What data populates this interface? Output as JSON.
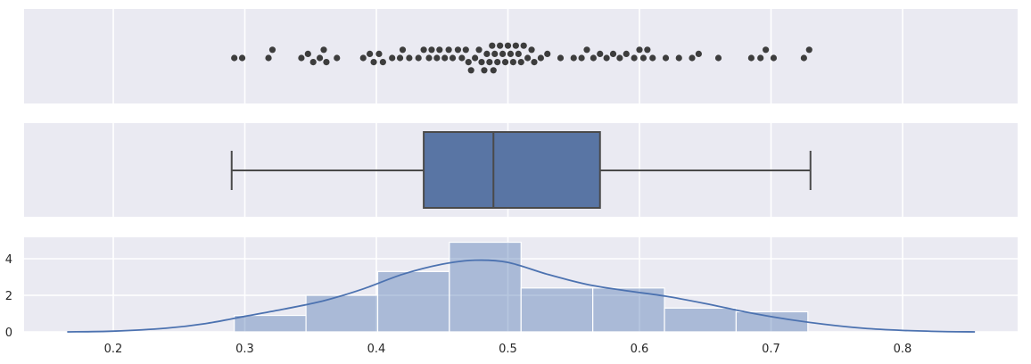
{
  "chart_data": [
    {
      "type": "scatter",
      "subtype": "swarm",
      "title": "",
      "xlabel": "",
      "ylabel": "",
      "xlim": [
        0.13,
        0.875
      ],
      "grid": true,
      "point_color": "#3d3d3d",
      "background": "#eaeaf2",
      "values": [
        0.292,
        0.298,
        0.318,
        0.321,
        0.343,
        0.348,
        0.352,
        0.357,
        0.36,
        0.362,
        0.37,
        0.39,
        0.395,
        0.398,
        0.402,
        0.405,
        0.412,
        0.418,
        0.42,
        0.425,
        0.432,
        0.436,
        0.44,
        0.442,
        0.446,
        0.448,
        0.452,
        0.455,
        0.458,
        0.462,
        0.465,
        0.468,
        0.47,
        0.472,
        0.475,
        0.478,
        0.48,
        0.482,
        0.484,
        0.486,
        0.488,
        0.489,
        0.49,
        0.492,
        0.494,
        0.496,
        0.498,
        0.5,
        0.502,
        0.504,
        0.506,
        0.508,
        0.51,
        0.512,
        0.515,
        0.518,
        0.52,
        0.525,
        0.53,
        0.54,
        0.55,
        0.556,
        0.56,
        0.565,
        0.57,
        0.575,
        0.58,
        0.585,
        0.59,
        0.596,
        0.6,
        0.603,
        0.606,
        0.61,
        0.62,
        0.63,
        0.64,
        0.645,
        0.66,
        0.685,
        0.692,
        0.696,
        0.702,
        0.725,
        0.729
      ]
    },
    {
      "type": "box",
      "title": "",
      "xlabel": "",
      "ylabel": "",
      "xlim": [
        0.13,
        0.875
      ],
      "grid": true,
      "color": "#5975a4",
      "whisker_low": 0.29,
      "q1": 0.436,
      "median": 0.489,
      "q3": 0.57,
      "whisker_high": 0.73
    },
    {
      "type": "bar",
      "subtype": "histogram_with_kde",
      "title": "",
      "xlabel": "",
      "ylabel": "",
      "xlim": [
        0.13,
        0.875
      ],
      "ylim": [
        0,
        5.1
      ],
      "grid": true,
      "bar_color": "#4c72b0",
      "bar_opacity": 0.4,
      "line_color": "#4c72b0",
      "bin_edges": [
        0.292,
        0.3465,
        0.401,
        0.4555,
        0.51,
        0.5645,
        0.619,
        0.6735,
        0.728
      ],
      "values": [
        0.9,
        2.0,
        3.3,
        4.9,
        2.4,
        2.4,
        1.3,
        1.1
      ],
      "kde": {
        "x": [
          0.165,
          0.2,
          0.24,
          0.27,
          0.3,
          0.33,
          0.36,
          0.39,
          0.42,
          0.45,
          0.475,
          0.5,
          0.53,
          0.56,
          0.59,
          0.62,
          0.65,
          0.68,
          0.71,
          0.74,
          0.77,
          0.8,
          0.83,
          0.855
        ],
        "y": [
          0.0,
          0.04,
          0.2,
          0.45,
          0.85,
          1.25,
          1.7,
          2.35,
          3.15,
          3.7,
          3.92,
          3.8,
          3.15,
          2.6,
          2.25,
          1.95,
          1.55,
          1.1,
          0.72,
          0.42,
          0.2,
          0.08,
          0.02,
          0.0
        ]
      },
      "x_ticks": [
        "0.2",
        "0.3",
        "0.4",
        "0.5",
        "0.6",
        "0.7",
        "0.8"
      ],
      "y_ticks": [
        "0",
        "2",
        "4"
      ]
    }
  ]
}
